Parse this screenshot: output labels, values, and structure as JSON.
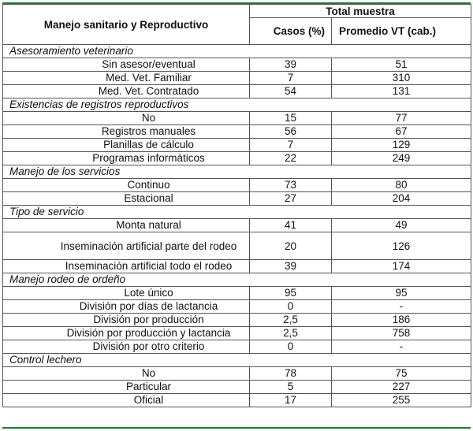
{
  "table": {
    "header": {
      "col1": "Manejo sanitario y Reproductivo",
      "group": "Total muestra",
      "col2": "Casos (%)",
      "col3": "Promedio VT (cab.)"
    },
    "sections": [
      {
        "title": "Asesoramiento veterinario",
        "rows": [
          {
            "label": "Sin asesor/eventual",
            "casos": "39",
            "promedio": "51"
          },
          {
            "label": "Med. Vet. Familiar",
            "casos": "7",
            "promedio": "310"
          },
          {
            "label": "Med. Vet. Contratado",
            "casos": "54",
            "promedio": "131"
          }
        ]
      },
      {
        "title": "Existencias de registros reproductivos",
        "rows": [
          {
            "label": "No",
            "casos": "15",
            "promedio": "77"
          },
          {
            "label": "Registros manuales",
            "casos": "56",
            "promedio": "67"
          },
          {
            "label": "Planillas de cálculo",
            "casos": "7",
            "promedio": "129"
          },
          {
            "label": "Programas informáticos",
            "casos": "22",
            "promedio": "249"
          }
        ]
      },
      {
        "title": "Manejo de los servicios",
        "rows": [
          {
            "label": "Continuo",
            "casos": "73",
            "promedio": "80"
          },
          {
            "label": "Estacional",
            "casos": "27",
            "promedio": "204"
          }
        ]
      },
      {
        "title": "Tipo de servicio",
        "rows": [
          {
            "label": "Monta natural",
            "casos": "41",
            "promedio": "49"
          },
          {
            "label": "Inseminación artificial parte del rodeo",
            "casos": "20",
            "promedio": "126",
            "tall": true
          },
          {
            "label": "Inseminación artificial todo el rodeo",
            "casos": "39",
            "promedio": "174"
          }
        ]
      },
      {
        "title": "Manejo rodeo de ordeño",
        "rows": [
          {
            "label": "Lote único",
            "casos": "95",
            "promedio": "95"
          },
          {
            "label": "División por días de lactancia",
            "casos": "0",
            "promedio": "-"
          },
          {
            "label": "División por producción",
            "casos": "2,5",
            "promedio": "186"
          },
          {
            "label": "División por producción y lactancia",
            "casos": "2,5",
            "promedio": "758"
          },
          {
            "label": "División por otro criterio",
            "casos": "0",
            "promedio": "-"
          }
        ]
      },
      {
        "title": "Control lechero",
        "rows": [
          {
            "label": "No",
            "casos": "78",
            "promedio": "75"
          },
          {
            "label": "Particular",
            "casos": "5",
            "promedio": "227"
          },
          {
            "label": "Oficial",
            "casos": "17",
            "promedio": "255"
          }
        ]
      }
    ]
  }
}
